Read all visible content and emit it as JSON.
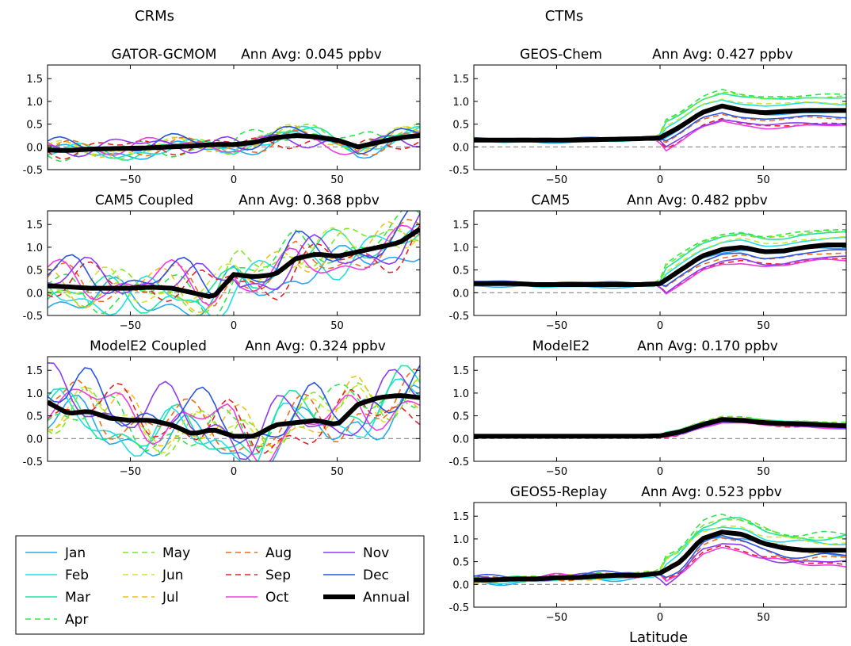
{
  "figure": {
    "group_titles": [
      "CRMs",
      "CTMs"
    ],
    "xlabel": "Latitude"
  },
  "chart_data": [
    {
      "type": "line",
      "model": "GATOR-GCMOM",
      "annotation": "Ann Avg: 0.045 ppbv",
      "x": [
        -90,
        -80,
        -70,
        -60,
        -50,
        -40,
        -30,
        -20,
        -10,
        0,
        10,
        20,
        30,
        40,
        50,
        60,
        70,
        80,
        90
      ],
      "xlim": [
        -90,
        90
      ],
      "ylim": [
        -0.5,
        1.8
      ],
      "yticks": [
        "-0.5",
        "0.0",
        "0.5",
        "1.0",
        "1.5"
      ],
      "xticks": [
        "-50",
        "0",
        "50"
      ],
      "reference_line": 0,
      "annual": [
        -0.07,
        -0.08,
        -0.05,
        -0.04,
        -0.03,
        -0.02,
        0.0,
        0.02,
        0.05,
        0.05,
        0.1,
        0.2,
        0.25,
        0.22,
        0.15,
        0.0,
        0.1,
        0.2,
        0.25
      ],
      "amp": 0.2,
      "noise": 0.22,
      "spread": 0.08
    },
    {
      "type": "line",
      "model": "CAM5 Coupled",
      "annotation": "Ann Avg: 0.368 ppbv",
      "x": [
        -90,
        -80,
        -70,
        -60,
        -50,
        -40,
        -30,
        -20,
        -10,
        0,
        10,
        20,
        30,
        40,
        50,
        60,
        70,
        80,
        90
      ],
      "xlim": [
        -90,
        90
      ],
      "ylim": [
        -0.5,
        1.8
      ],
      "yticks": [
        "-0.5",
        "0.0",
        "0.5",
        "1.0",
        "1.5"
      ],
      "xticks": [
        "-50",
        "0",
        "50"
      ],
      "reference_line": 0,
      "annual": [
        0.15,
        0.13,
        0.1,
        0.1,
        0.1,
        0.12,
        0.1,
        0.0,
        -0.1,
        0.4,
        0.35,
        0.4,
        0.75,
        0.85,
        0.8,
        0.9,
        1.0,
        1.1,
        1.4
      ],
      "amp": 0.5,
      "noise": 0.5,
      "spread": 0.25
    },
    {
      "type": "line",
      "model": "ModelE2 Coupled",
      "annotation": "Ann Avg: 0.324 ppbv",
      "x": [
        -90,
        -80,
        -70,
        -60,
        -50,
        -40,
        -30,
        -20,
        -10,
        0,
        10,
        20,
        30,
        40,
        50,
        60,
        70,
        80,
        90
      ],
      "xlim": [
        -90,
        90
      ],
      "ylim": [
        -0.5,
        1.8
      ],
      "yticks": [
        "-0.5",
        "0.0",
        "0.5",
        "1.0",
        "1.5"
      ],
      "xticks": [
        "-50",
        "0",
        "50"
      ],
      "reference_line": 0,
      "annual": [
        0.8,
        0.55,
        0.6,
        0.45,
        0.4,
        0.4,
        0.3,
        0.1,
        0.2,
        0.05,
        0.05,
        0.3,
        0.35,
        0.4,
        0.3,
        0.75,
        0.9,
        0.95,
        0.9
      ],
      "amp": 0.5,
      "noise": 0.7,
      "spread": 0.3
    },
    {
      "type": "line",
      "model": "GEOS-Chem",
      "annotation": "Ann Avg: 0.427 ppbv",
      "x": [
        -90,
        -80,
        -70,
        -60,
        -50,
        -40,
        -30,
        -20,
        -10,
        0,
        10,
        20,
        30,
        40,
        50,
        60,
        70,
        80,
        90
      ],
      "xlim": [
        -90,
        90
      ],
      "ylim": [
        -0.5,
        1.8
      ],
      "yticks": [
        "-0.5",
        "0.0",
        "0.5",
        "1.0",
        "1.5"
      ],
      "xticks": [
        "-50",
        "0",
        "50"
      ],
      "reference_line": 0,
      "annual": [
        0.15,
        0.15,
        0.15,
        0.15,
        0.15,
        0.15,
        0.16,
        0.17,
        0.18,
        0.2,
        0.45,
        0.75,
        0.9,
        0.8,
        0.75,
        0.78,
        0.8,
        0.8,
        0.8
      ],
      "amp": 0.6,
      "noise": 0.03,
      "spread": 0.04
    },
    {
      "type": "line",
      "model": "CAM5",
      "annotation": "Ann Avg: 0.482 ppbv",
      "x": [
        -90,
        -80,
        -70,
        -60,
        -50,
        -40,
        -30,
        -20,
        -10,
        0,
        10,
        20,
        30,
        40,
        50,
        60,
        70,
        80,
        90
      ],
      "xlim": [
        -90,
        90
      ],
      "ylim": [
        -0.5,
        1.8
      ],
      "yticks": [
        "-0.5",
        "0.0",
        "0.5",
        "1.0",
        "1.5"
      ],
      "xticks": [
        "-50",
        "0",
        "50"
      ],
      "reference_line": 0,
      "annual": [
        0.2,
        0.2,
        0.2,
        0.18,
        0.18,
        0.18,
        0.18,
        0.18,
        0.18,
        0.2,
        0.5,
        0.8,
        0.95,
        1.0,
        0.9,
        0.92,
        1.0,
        1.05,
        1.05
      ],
      "amp": 0.6,
      "noise": 0.03,
      "spread": 0.05
    },
    {
      "type": "line",
      "model": "ModelE2",
      "annotation": "Ann Avg: 0.170 ppbv",
      "x": [
        -90,
        -80,
        -70,
        -60,
        -50,
        -40,
        -30,
        -20,
        -10,
        0,
        10,
        20,
        30,
        40,
        50,
        60,
        70,
        80,
        90
      ],
      "xlim": [
        -90,
        90
      ],
      "ylim": [
        -0.5,
        1.8
      ],
      "yticks": [
        "-0.5",
        "0.0",
        "0.5",
        "1.0",
        "1.5"
      ],
      "xticks": [
        "-50",
        "0",
        "50"
      ],
      "reference_line": 0,
      "annual": [
        0.05,
        0.05,
        0.05,
        0.05,
        0.05,
        0.05,
        0.05,
        0.05,
        0.05,
        0.06,
        0.15,
        0.3,
        0.42,
        0.4,
        0.35,
        0.33,
        0.32,
        0.3,
        0.28
      ],
      "amp": 0.12,
      "noise": 0.02,
      "spread": 0.02
    },
    {
      "type": "line",
      "model": "GEOS5-Replay",
      "annotation": "Ann Avg: 0.523 ppbv",
      "x": [
        -90,
        -80,
        -70,
        -60,
        -50,
        -40,
        -30,
        -20,
        -10,
        0,
        10,
        20,
        30,
        40,
        50,
        60,
        70,
        80,
        90
      ],
      "xlim": [
        -90,
        90
      ],
      "ylim": [
        -0.5,
        1.8
      ],
      "yticks": [
        "-0.5",
        "0.0",
        "0.5",
        "1.0",
        "1.5"
      ],
      "xticks": [
        "-50",
        "0",
        "50"
      ],
      "reference_line": 0,
      "annual": [
        0.1,
        0.1,
        0.12,
        0.12,
        0.15,
        0.15,
        0.18,
        0.2,
        0.2,
        0.25,
        0.5,
        1.0,
        1.15,
        1.1,
        0.9,
        0.8,
        0.75,
        0.75,
        0.75
      ],
      "amp": 0.6,
      "noise": 0.08,
      "spread": 0.05
    }
  ],
  "legend": {
    "position": "bottom-left",
    "entries": [
      {
        "label": "Jan",
        "color": "#27aaf0",
        "dash": false
      },
      {
        "label": "Feb",
        "color": "#1ee0e6",
        "dash": false
      },
      {
        "label": "Mar",
        "color": "#1de6a2",
        "dash": false
      },
      {
        "label": "Apr",
        "color": "#2ee64c",
        "dash": true
      },
      {
        "label": "May",
        "color": "#7ee62a",
        "dash": true
      },
      {
        "label": "Jun",
        "color": "#cfe62a",
        "dash": true
      },
      {
        "label": "Jul",
        "color": "#f0c01c",
        "dash": true
      },
      {
        "label": "Aug",
        "color": "#f06b1c",
        "dash": true
      },
      {
        "label": "Sep",
        "color": "#e8202a",
        "dash": true
      },
      {
        "label": "Oct",
        "color": "#f03ce0",
        "dash": false
      },
      {
        "label": "Nov",
        "color": "#8c3cf0",
        "dash": false
      },
      {
        "label": "Dec",
        "color": "#2a55e0",
        "dash": false
      },
      {
        "label": "Annual",
        "color": "#000000",
        "dash": false,
        "thick": true
      }
    ]
  }
}
